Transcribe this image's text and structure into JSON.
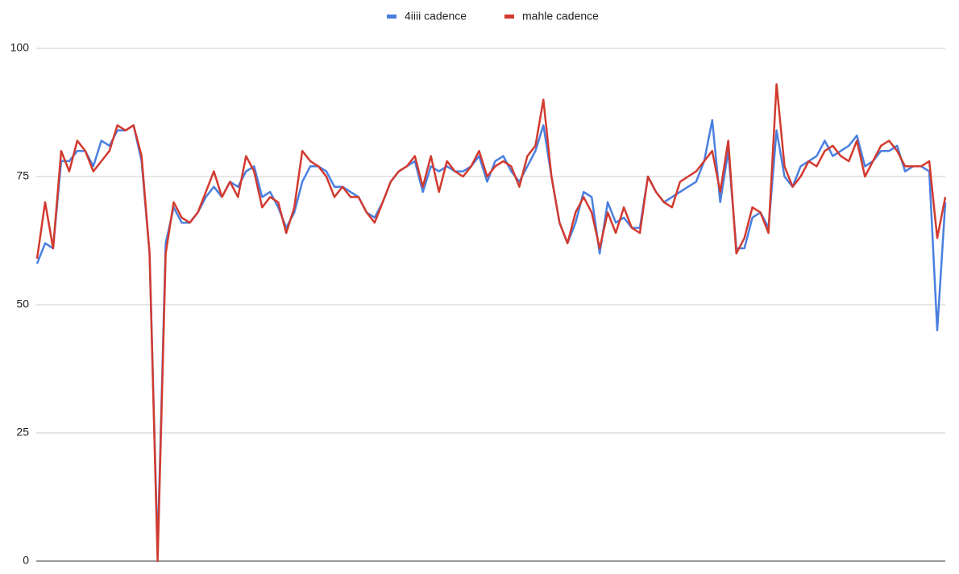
{
  "chart_data": {
    "type": "line",
    "legend": "top",
    "grid": true,
    "ylim": [
      0,
      100
    ],
    "yticks": [
      0,
      25,
      50,
      75,
      100
    ],
    "series": [
      {
        "name": "4iiii cadence",
        "color": "#4a7fe0",
        "values": [
          58,
          62,
          61,
          78,
          78,
          80,
          80,
          77,
          82,
          81,
          84,
          84,
          85,
          78,
          60,
          2,
          62,
          69,
          66,
          66,
          68,
          71,
          73,
          71,
          74,
          73,
          76,
          77,
          71,
          72,
          69,
          65,
          68,
          74,
          77,
          77,
          76,
          73,
          73,
          72,
          71,
          68,
          67,
          70,
          74,
          76,
          77,
          78,
          72,
          77,
          76,
          77,
          76,
          76,
          77,
          79,
          74,
          78,
          79,
          76,
          74,
          77,
          80,
          85,
          75,
          66,
          62,
          66,
          72,
          71,
          60,
          70,
          66,
          67,
          65,
          65,
          75,
          72,
          70,
          71,
          72,
          73,
          74,
          78,
          86,
          70,
          80,
          61,
          61,
          67,
          68,
          65,
          84,
          75,
          73,
          77,
          78,
          79,
          82,
          79,
          80,
          81,
          83,
          77,
          78,
          80,
          80,
          81,
          76,
          77,
          77,
          76,
          45,
          70
        ]
      },
      {
        "name": "mahle cadence",
        "color": "#d23a2f",
        "values": [
          59,
          70,
          61,
          80,
          76,
          82,
          80,
          76,
          78,
          80,
          85,
          84,
          85,
          79,
          60,
          0,
          60,
          70,
          67,
          66,
          68,
          72,
          76,
          71,
          74,
          71,
          79,
          76,
          69,
          71,
          70,
          64,
          69,
          80,
          78,
          77,
          75,
          71,
          73,
          71,
          71,
          68,
          66,
          70,
          74,
          76,
          77,
          79,
          73,
          79,
          72,
          78,
          76,
          75,
          77,
          80,
          75,
          77,
          78,
          77,
          73,
          79,
          81,
          90,
          75,
          66,
          62,
          68,
          71,
          68,
          61,
          68,
          64,
          69,
          65,
          64,
          75,
          72,
          70,
          69,
          74,
          75,
          76,
          78,
          80,
          72,
          82,
          60,
          63,
          69,
          68,
          64,
          93,
          77,
          73,
          75,
          78,
          77,
          80,
          81,
          79,
          78,
          82,
          75,
          78,
          81,
          82,
          80,
          77,
          77,
          77,
          78,
          63,
          71
        ]
      }
    ]
  }
}
